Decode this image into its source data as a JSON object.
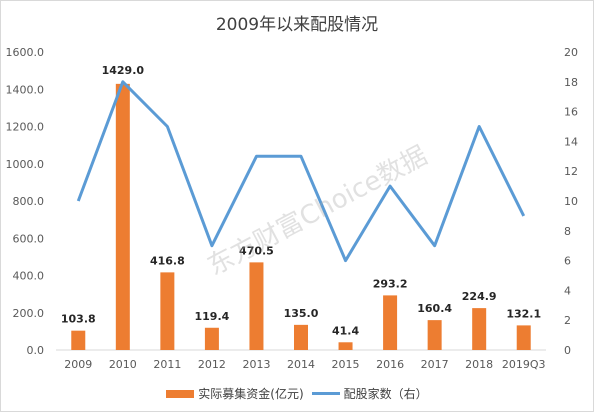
{
  "chart_data": {
    "type": "bar",
    "title": "2009年以来配股情况",
    "categories": [
      "2009",
      "2010",
      "2011",
      "2012",
      "2013",
      "2014",
      "2015",
      "2016",
      "2017",
      "2018",
      "2019Q3"
    ],
    "series": [
      {
        "name": "实际募集资金(亿元)",
        "type": "bar",
        "axis": "left",
        "color": "#ED7D31",
        "values": [
          103.8,
          1429.0,
          416.8,
          119.4,
          470.5,
          135.0,
          41.4,
          293.2,
          160.4,
          224.9,
          132.1
        ],
        "labels": [
          "103.8",
          "1429.0",
          "416.8",
          "119.4",
          "470.5",
          "135.0",
          "41.4",
          "293.2",
          "160.4",
          "224.9",
          "132.1"
        ]
      },
      {
        "name": "配股家数（右）",
        "type": "line",
        "axis": "right",
        "color": "#5B9BD5",
        "values": [
          10,
          18,
          15,
          7,
          13,
          13,
          6,
          11,
          7,
          15,
          9
        ]
      }
    ],
    "yleft": {
      "min": 0,
      "max": 1600,
      "step": 200,
      "ticks": [
        "0.0",
        "200.0",
        "400.0",
        "600.0",
        "800.0",
        "1000.0",
        "1200.0",
        "1400.0",
        "1600.0"
      ]
    },
    "yright": {
      "min": 0,
      "max": 20,
      "step": 2,
      "ticks": [
        "0",
        "2",
        "4",
        "6",
        "8",
        "10",
        "12",
        "14",
        "16",
        "18",
        "20"
      ]
    },
    "grid": false,
    "legend_position": "bottom",
    "watermark": "东方财富Choice数据"
  }
}
